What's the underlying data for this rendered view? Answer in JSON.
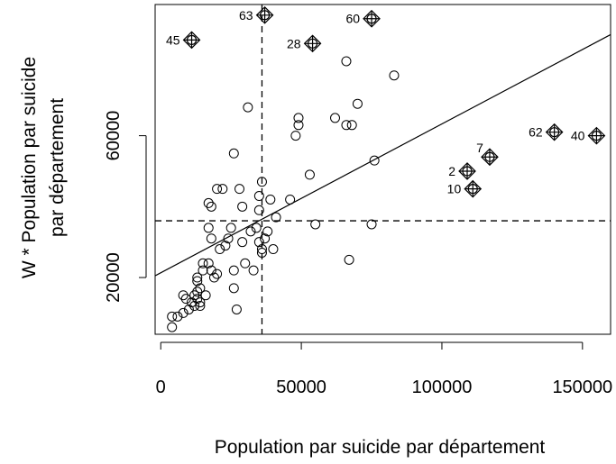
{
  "chart_data": {
    "type": "scatter",
    "xlabel": "Population par suicide par département",
    "ylabel_lines": [
      "W * Population par suicide",
      "par département"
    ],
    "x_ticks": [
      0,
      50000,
      100000,
      150000
    ],
    "x_tick_labels": [
      "0",
      "50000",
      "100000",
      "150000"
    ],
    "y_ticks": [
      20000,
      60000
    ],
    "y_tick_labels": [
      "20000",
      "60000"
    ],
    "xlim": [
      -2000,
      160000
    ],
    "ylim": [
      4000,
      97000
    ],
    "mean_x": 36000,
    "mean_y": 36000,
    "regression_line": {
      "x1": -2000,
      "y1": 20500,
      "x2": 160000,
      "y2": 88500
    },
    "points": [
      [
        4000,
        6000
      ],
      [
        4000,
        9000
      ],
      [
        6000,
        9000
      ],
      [
        8000,
        10000
      ],
      [
        8000,
        15000
      ],
      [
        9000,
        14000
      ],
      [
        10000,
        11000
      ],
      [
        11000,
        13000
      ],
      [
        12000,
        12000
      ],
      [
        12000,
        15000
      ],
      [
        13000,
        14000
      ],
      [
        13000,
        16000
      ],
      [
        13000,
        19000
      ],
      [
        13000,
        20000
      ],
      [
        14000,
        12000
      ],
      [
        14000,
        13000
      ],
      [
        14000,
        17000
      ],
      [
        15000,
        22000
      ],
      [
        15000,
        24000
      ],
      [
        16000,
        15000
      ],
      [
        17000,
        24000
      ],
      [
        17000,
        34000
      ],
      [
        17000,
        41000
      ],
      [
        18000,
        22000
      ],
      [
        18000,
        31000
      ],
      [
        18000,
        40000
      ],
      [
        19000,
        20000
      ],
      [
        20000,
        21000
      ],
      [
        20000,
        45000
      ],
      [
        21000,
        28000
      ],
      [
        22000,
        45000
      ],
      [
        23000,
        29000
      ],
      [
        24000,
        31000
      ],
      [
        25000,
        34000
      ],
      [
        26000,
        17000
      ],
      [
        26000,
        22000
      ],
      [
        26000,
        55000
      ],
      [
        27000,
        11000
      ],
      [
        28000,
        45000
      ],
      [
        29000,
        30000
      ],
      [
        29000,
        40000
      ],
      [
        30000,
        24000
      ],
      [
        31000,
        68000
      ],
      [
        32000,
        33000
      ],
      [
        33000,
        22000
      ],
      [
        34000,
        34000
      ],
      [
        35000,
        39000
      ],
      [
        35000,
        43000
      ],
      [
        35000,
        30000
      ],
      [
        36000,
        27000
      ],
      [
        36000,
        28000
      ],
      [
        36000,
        47000
      ],
      [
        37000,
        31000
      ],
      [
        38000,
        33000
      ],
      [
        39000,
        42000
      ],
      [
        40000,
        28000
      ],
      [
        41000,
        37000
      ],
      [
        46000,
        42000
      ],
      [
        48000,
        60000
      ],
      [
        49000,
        63000
      ],
      [
        49000,
        65000
      ],
      [
        53000,
        49000
      ],
      [
        55000,
        35000
      ],
      [
        62000,
        65000
      ],
      [
        66000,
        63000
      ],
      [
        66000,
        81000
      ],
      [
        67000,
        25000
      ],
      [
        68000,
        63000
      ],
      [
        70000,
        69000
      ],
      [
        75000,
        35000
      ],
      [
        76000,
        53000
      ],
      [
        83000,
        77000
      ]
    ],
    "labeled_points": [
      {
        "label": "63",
        "x": 37000,
        "y": 94000,
        "label_pos": "left"
      },
      {
        "label": "60",
        "x": 75000,
        "y": 93000,
        "label_pos": "left"
      },
      {
        "label": "45",
        "x": 11000,
        "y": 87000,
        "label_pos": "left"
      },
      {
        "label": "28",
        "x": 54000,
        "y": 86000,
        "label_pos": "left"
      },
      {
        "label": "62",
        "x": 140000,
        "y": 61000,
        "label_pos": "left"
      },
      {
        "label": "40",
        "x": 155000,
        "y": 60000,
        "label_pos": "left"
      },
      {
        "label": "7",
        "x": 117000,
        "y": 54000,
        "label_pos": "above-left"
      },
      {
        "label": "2",
        "x": 109000,
        "y": 50000,
        "label_pos": "left"
      },
      {
        "label": "10",
        "x": 111000,
        "y": 45000,
        "label_pos": "left"
      }
    ]
  }
}
